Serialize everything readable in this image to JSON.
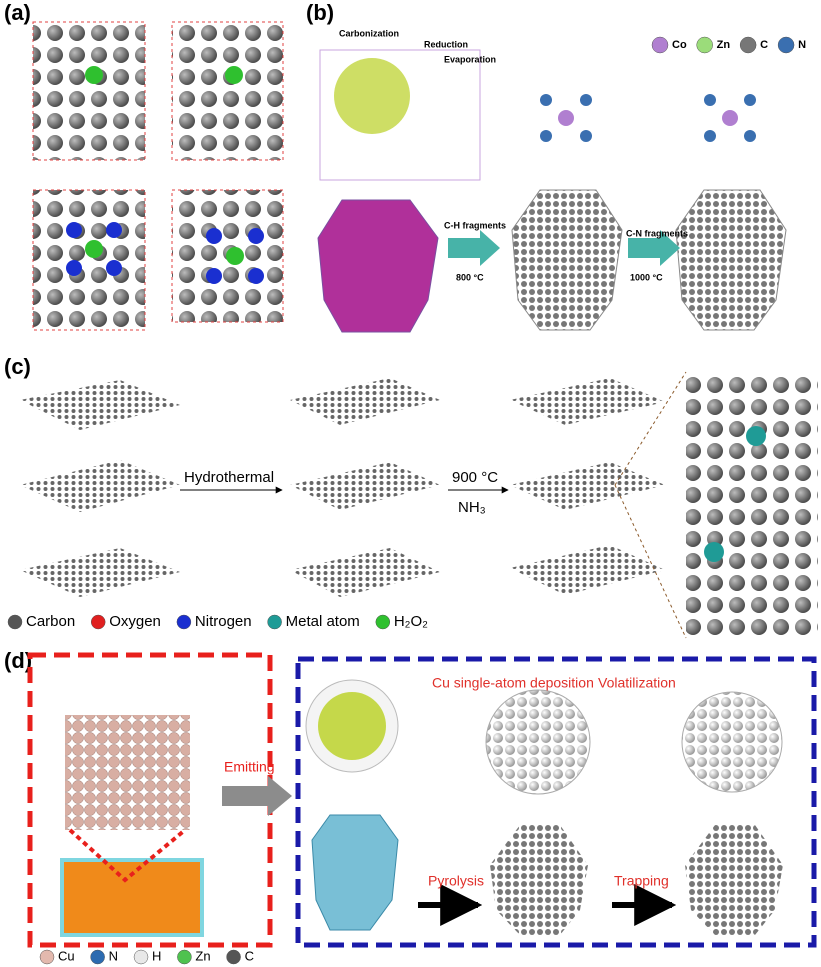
{
  "panels": {
    "a": {
      "label": "(a)"
    },
    "b": {
      "label": "(b)",
      "annotations": [
        "Carbonization",
        "Reduction",
        "Evaporation"
      ],
      "legend": [
        {
          "text": "Co",
          "color": "#b07fd0"
        },
        {
          "text": "Zn",
          "color": "#9bdc7a"
        },
        {
          "text": "C",
          "color": "#777777"
        },
        {
          "text": "N",
          "color": "#3a6fb0"
        }
      ],
      "steps": [
        {
          "label": "C-H fragments",
          "temperature": "800 °C"
        },
        {
          "label": "C-N fragments",
          "temperature": "1000 °C"
        }
      ]
    },
    "c": {
      "label": "(c)",
      "steps": [
        "Hydrothermal",
        "900 °C",
        "NH₃"
      ],
      "legend": [
        {
          "text": "Carbon",
          "color": "#555555"
        },
        {
          "text": "Oxygen",
          "color": "#e02020"
        },
        {
          "text": "Nitrogen",
          "color": "#1a2fd0"
        },
        {
          "text": "Metal atom",
          "color": "#1f9b96"
        },
        {
          "text": "H₂O₂",
          "color": "#2fc02f"
        }
      ]
    },
    "d": {
      "label": "(d)",
      "annotations": [
        "Cu single-atom deposition",
        "Volatilization"
      ],
      "steps": [
        "Emitting",
        "Pyrolysis",
        "Trapping"
      ],
      "legend": [
        {
          "text": "Cu",
          "color": "#e3b9ae"
        },
        {
          "text": "N",
          "color": "#2d6bb0"
        },
        {
          "text": "H",
          "color": "#e8e8e8"
        },
        {
          "text": "Zn",
          "color": "#4fc24f"
        },
        {
          "text": "C",
          "color": "#555555"
        }
      ]
    }
  }
}
